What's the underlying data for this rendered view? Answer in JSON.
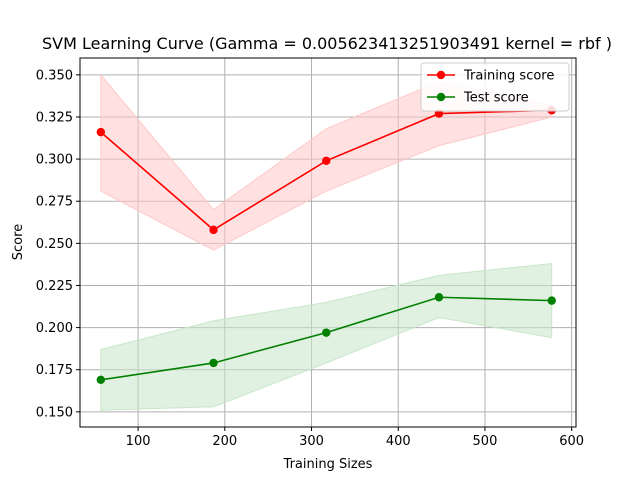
{
  "chart_data": {
    "type": "line",
    "title": "SVM Learning Curve (Gamma = 0.005623413251903491 kernel =  rbf )",
    "xlabel": "Training Sizes",
    "ylabel": "Score",
    "xlim": [
      33,
      605
    ],
    "ylim": [
      0.141,
      0.36
    ],
    "x_ticks": [
      100,
      200,
      300,
      400,
      500,
      600
    ],
    "y_ticks": [
      0.15,
      0.175,
      0.2,
      0.225,
      0.25,
      0.275,
      0.3,
      0.325,
      0.35
    ],
    "x_tick_labels": [
      "100",
      "200",
      "300",
      "400",
      "500",
      "600"
    ],
    "y_tick_labels": [
      "0.150",
      "0.175",
      "0.200",
      "0.225",
      "0.250",
      "0.275",
      "0.300",
      "0.325",
      "0.350"
    ],
    "grid": true,
    "legend_position": "top-right",
    "x": [
      57,
      187,
      317,
      447,
      577
    ],
    "series": [
      {
        "name": "Training score",
        "color": "#ff0000",
        "band_color": "#ffc8c8",
        "values": [
          0.316,
          0.258,
          0.299,
          0.327,
          0.329
        ],
        "upper": [
          0.35,
          0.27,
          0.318,
          0.346,
          0.332
        ],
        "lower": [
          0.281,
          0.246,
          0.281,
          0.308,
          0.325
        ]
      },
      {
        "name": "Test score",
        "color": "#008000",
        "band_color": "#c8e6c8",
        "values": [
          0.169,
          0.179,
          0.197,
          0.218,
          0.216
        ],
        "upper": [
          0.187,
          0.204,
          0.215,
          0.231,
          0.238
        ],
        "lower": [
          0.151,
          0.153,
          0.179,
          0.206,
          0.194
        ]
      }
    ]
  }
}
